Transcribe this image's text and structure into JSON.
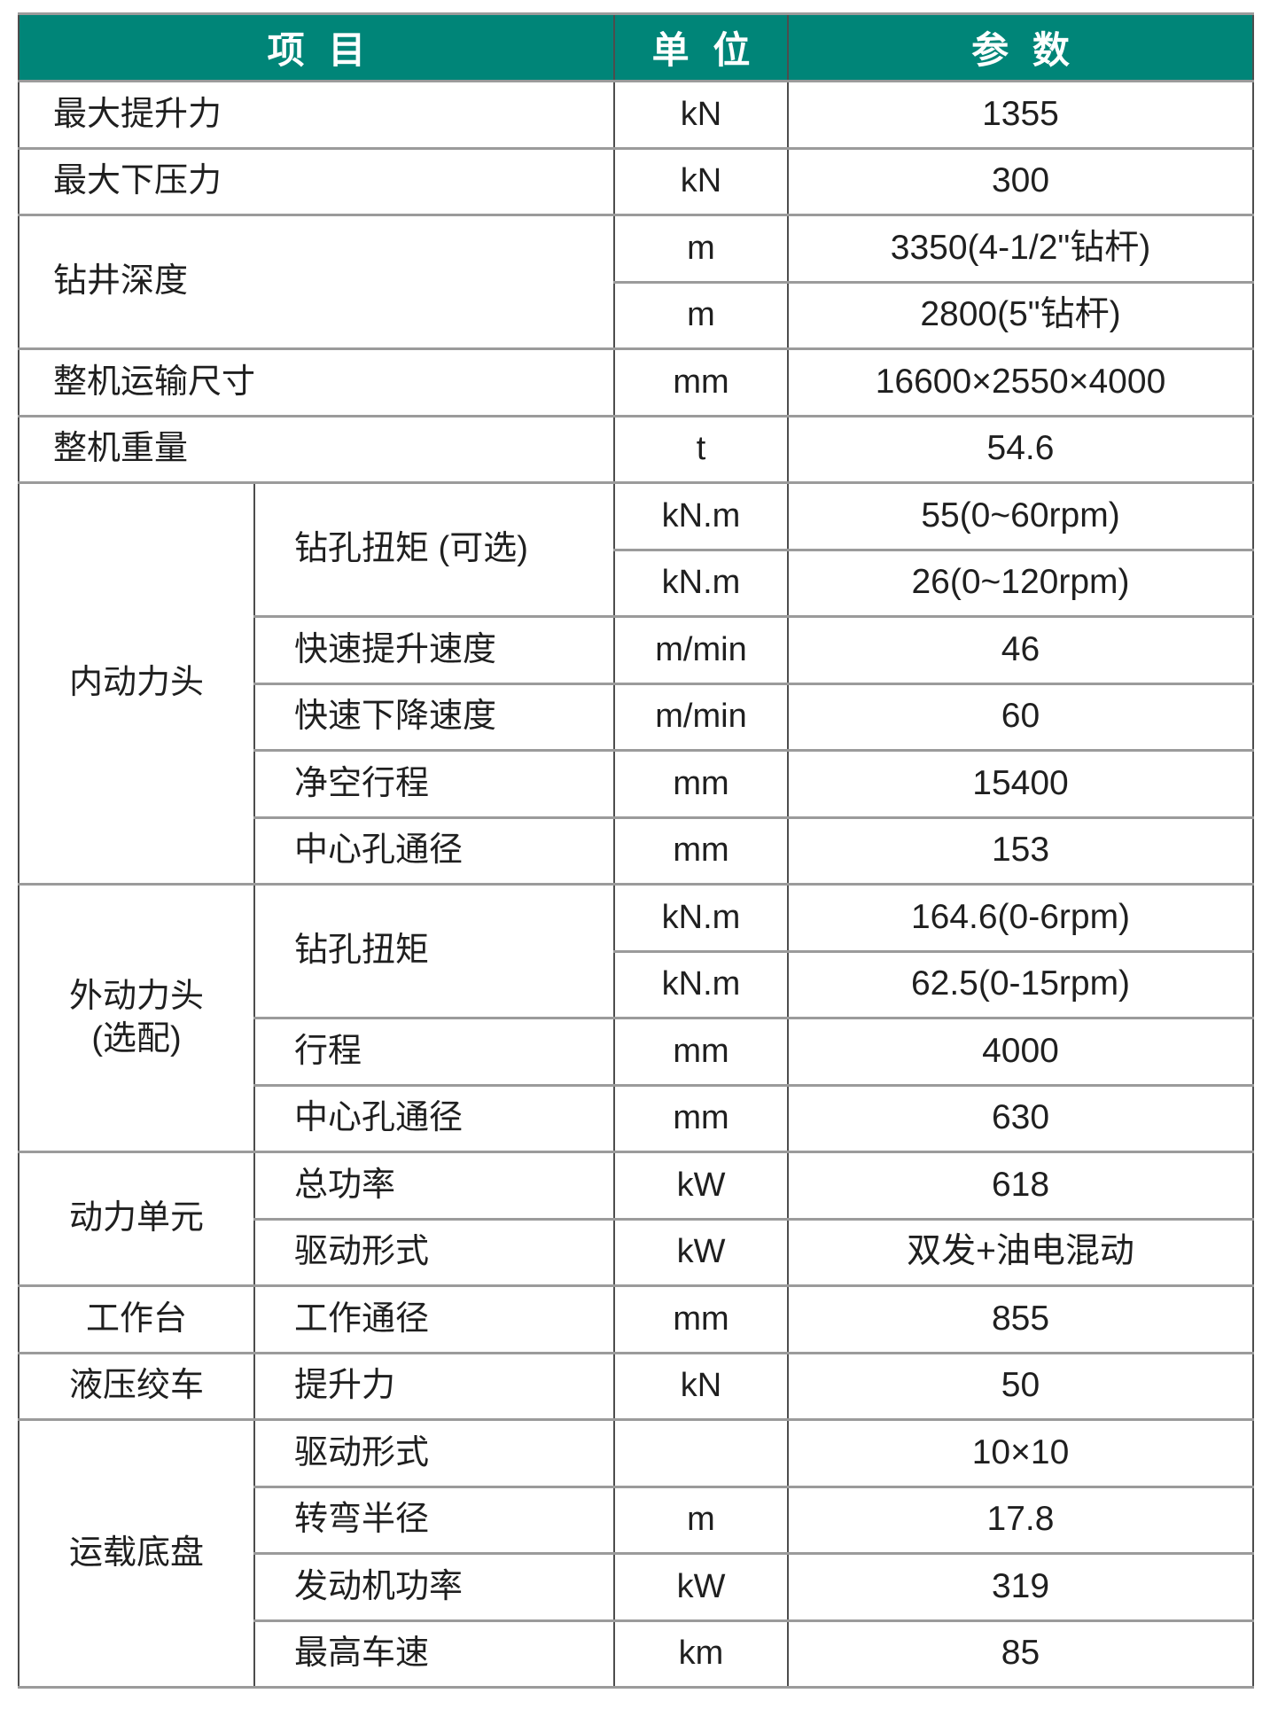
{
  "colors": {
    "header_bg": "#008578",
    "header_text": "#ffffff",
    "body_text": "#1f1f1f",
    "grid_horizontal": "#9b9b9b",
    "grid_vertical": "#4d4d4d",
    "page_bg": "#ffffff"
  },
  "table": {
    "headers": [
      "项 目",
      "单 位",
      "参 数"
    ],
    "rows": [
      {
        "cells": [
          {
            "text": "最大提升力",
            "kind": "item",
            "colspan": 2
          },
          {
            "text": "kN",
            "kind": "unit"
          },
          {
            "text": "1355",
            "kind": "value"
          }
        ]
      },
      {
        "cells": [
          {
            "text": "最大下压力",
            "kind": "item",
            "colspan": 2
          },
          {
            "text": "kN",
            "kind": "unit"
          },
          {
            "text": "300",
            "kind": "value"
          }
        ]
      },
      {
        "cells": [
          {
            "text": "钻井深度",
            "kind": "item",
            "colspan": 2,
            "rowspan": 2
          },
          {
            "text": "m",
            "kind": "unit"
          },
          {
            "text": "3350(4-1/2\"钻杆)",
            "kind": "value"
          }
        ]
      },
      {
        "cells": [
          {
            "text": "m",
            "kind": "unit"
          },
          {
            "text": "2800(5\"钻杆)",
            "kind": "value"
          }
        ]
      },
      {
        "cells": [
          {
            "text": "整机运输尺寸",
            "kind": "item",
            "colspan": 2
          },
          {
            "text": "mm",
            "kind": "unit"
          },
          {
            "text": "16600×2550×4000",
            "kind": "value"
          }
        ]
      },
      {
        "cells": [
          {
            "text": "整机重量",
            "kind": "item",
            "colspan": 2
          },
          {
            "text": "t",
            "kind": "unit"
          },
          {
            "text": "54.6",
            "kind": "value"
          }
        ]
      },
      {
        "cells": [
          {
            "text": "内动力头",
            "kind": "group",
            "rowspan": 6
          },
          {
            "text": "钻孔扭矩 (可选)",
            "kind": "subitem",
            "rowspan": 2
          },
          {
            "text": "kN.m",
            "kind": "unit"
          },
          {
            "text": "55(0~60rpm)",
            "kind": "value"
          }
        ]
      },
      {
        "cells": [
          {
            "text": "kN.m",
            "kind": "unit"
          },
          {
            "text": "26(0~120rpm)",
            "kind": "value"
          }
        ]
      },
      {
        "cells": [
          {
            "text": "快速提升速度",
            "kind": "subitem"
          },
          {
            "text": "m/min",
            "kind": "unit"
          },
          {
            "text": "46",
            "kind": "value"
          }
        ]
      },
      {
        "cells": [
          {
            "text": "快速下降速度",
            "kind": "subitem"
          },
          {
            "text": "m/min",
            "kind": "unit"
          },
          {
            "text": "60",
            "kind": "value"
          }
        ]
      },
      {
        "cells": [
          {
            "text": "净空行程",
            "kind": "subitem"
          },
          {
            "text": "mm",
            "kind": "unit"
          },
          {
            "text": "15400",
            "kind": "value"
          }
        ]
      },
      {
        "cells": [
          {
            "text": "中心孔通径",
            "kind": "subitem"
          },
          {
            "text": "mm",
            "kind": "unit"
          },
          {
            "text": "153",
            "kind": "value"
          }
        ]
      },
      {
        "cells": [
          {
            "text": "外动力头\n(选配)",
            "kind": "group",
            "rowspan": 4
          },
          {
            "text": "钻孔扭矩",
            "kind": "subitem",
            "rowspan": 2
          },
          {
            "text": "kN.m",
            "kind": "unit"
          },
          {
            "text": "164.6(0-6rpm)",
            "kind": "value"
          }
        ]
      },
      {
        "cells": [
          {
            "text": "kN.m",
            "kind": "unit"
          },
          {
            "text": "62.5(0-15rpm)",
            "kind": "value"
          }
        ]
      },
      {
        "cells": [
          {
            "text": "行程",
            "kind": "subitem"
          },
          {
            "text": "mm",
            "kind": "unit"
          },
          {
            "text": "4000",
            "kind": "value"
          }
        ]
      },
      {
        "cells": [
          {
            "text": "中心孔通径",
            "kind": "subitem"
          },
          {
            "text": "mm",
            "kind": "unit"
          },
          {
            "text": "630",
            "kind": "value"
          }
        ]
      },
      {
        "cells": [
          {
            "text": "动力单元",
            "kind": "group",
            "rowspan": 2
          },
          {
            "text": "总功率",
            "kind": "subitem"
          },
          {
            "text": "kW",
            "kind": "unit"
          },
          {
            "text": "618",
            "kind": "value"
          }
        ]
      },
      {
        "cells": [
          {
            "text": "驱动形式",
            "kind": "subitem"
          },
          {
            "text": "kW",
            "kind": "unit"
          },
          {
            "text": "双发+油电混动",
            "kind": "value"
          }
        ]
      },
      {
        "cells": [
          {
            "text": "工作台",
            "kind": "group"
          },
          {
            "text": "工作通径",
            "kind": "subitem"
          },
          {
            "text": "mm",
            "kind": "unit"
          },
          {
            "text": "855",
            "kind": "value"
          }
        ]
      },
      {
        "cells": [
          {
            "text": "液压绞车",
            "kind": "group"
          },
          {
            "text": "提升力",
            "kind": "subitem"
          },
          {
            "text": "kN",
            "kind": "unit"
          },
          {
            "text": "50",
            "kind": "value"
          }
        ]
      },
      {
        "cells": [
          {
            "text": "运载底盘",
            "kind": "group",
            "rowspan": 4
          },
          {
            "text": "驱动形式",
            "kind": "subitem"
          },
          {
            "text": "",
            "kind": "unit"
          },
          {
            "text": "10×10",
            "kind": "value"
          }
        ]
      },
      {
        "cells": [
          {
            "text": "转弯半径",
            "kind": "subitem"
          },
          {
            "text": "m",
            "kind": "unit"
          },
          {
            "text": "17.8",
            "kind": "value"
          }
        ]
      },
      {
        "cells": [
          {
            "text": "发动机功率",
            "kind": "subitem"
          },
          {
            "text": "kW",
            "kind": "unit"
          },
          {
            "text": "319",
            "kind": "value"
          }
        ]
      },
      {
        "cells": [
          {
            "text": "最高车速",
            "kind": "subitem"
          },
          {
            "text": "km",
            "kind": "unit"
          },
          {
            "text": "85",
            "kind": "value"
          }
        ]
      }
    ]
  }
}
